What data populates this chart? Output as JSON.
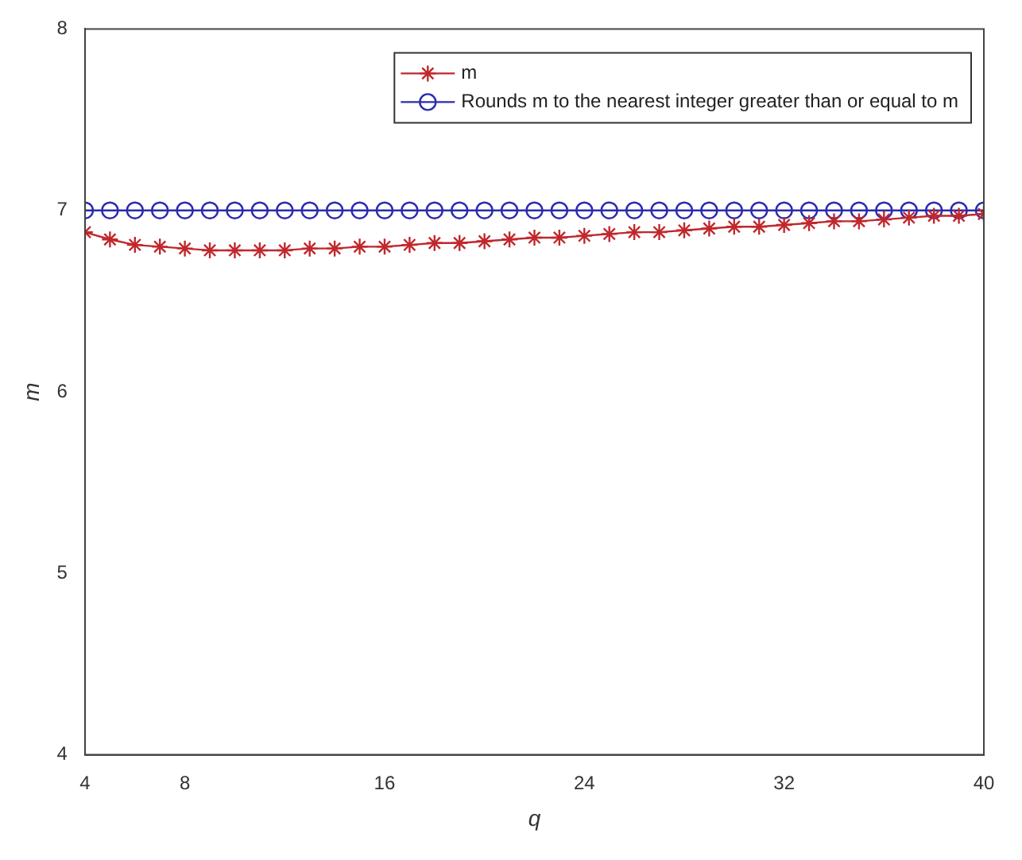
{
  "chart_data": {
    "type": "line",
    "xlabel": "q",
    "ylabel": "m",
    "x": [
      4,
      5,
      6,
      7,
      8,
      9,
      10,
      11,
      12,
      13,
      14,
      15,
      16,
      17,
      18,
      19,
      20,
      21,
      22,
      23,
      24,
      25,
      26,
      27,
      28,
      29,
      30,
      31,
      32,
      33,
      34,
      35,
      36,
      37,
      38,
      39,
      40
    ],
    "series": [
      {
        "name": "m",
        "color": "#c0282d",
        "marker": "cross",
        "values": [
          6.88,
          6.84,
          6.81,
          6.8,
          6.79,
          6.78,
          6.78,
          6.78,
          6.78,
          6.79,
          6.79,
          6.8,
          6.8,
          6.81,
          6.82,
          6.82,
          6.83,
          6.84,
          6.85,
          6.85,
          6.86,
          6.87,
          6.88,
          6.88,
          6.89,
          6.9,
          6.91,
          6.91,
          6.92,
          6.93,
          6.94,
          6.94,
          6.95,
          6.96,
          6.97,
          6.97,
          6.98
        ]
      },
      {
        "name": "Rounds m to the nearest integer greater than or equal to m",
        "color": "#2b2bb0",
        "marker": "circle",
        "values": [
          7,
          7,
          7,
          7,
          7,
          7,
          7,
          7,
          7,
          7,
          7,
          7,
          7,
          7,
          7,
          7,
          7,
          7,
          7,
          7,
          7,
          7,
          7,
          7,
          7,
          7,
          7,
          7,
          7,
          7,
          7,
          7,
          7,
          7,
          7,
          7,
          7
        ]
      }
    ],
    "xlim": [
      4,
      40
    ],
    "xticks": [
      4,
      8,
      16,
      24,
      32,
      40
    ],
    "ylim": [
      4,
      8
    ],
    "yticks": [
      4,
      5,
      6,
      7,
      8
    ],
    "grid": false,
    "legend": "top right",
    "line_style": "solid"
  }
}
